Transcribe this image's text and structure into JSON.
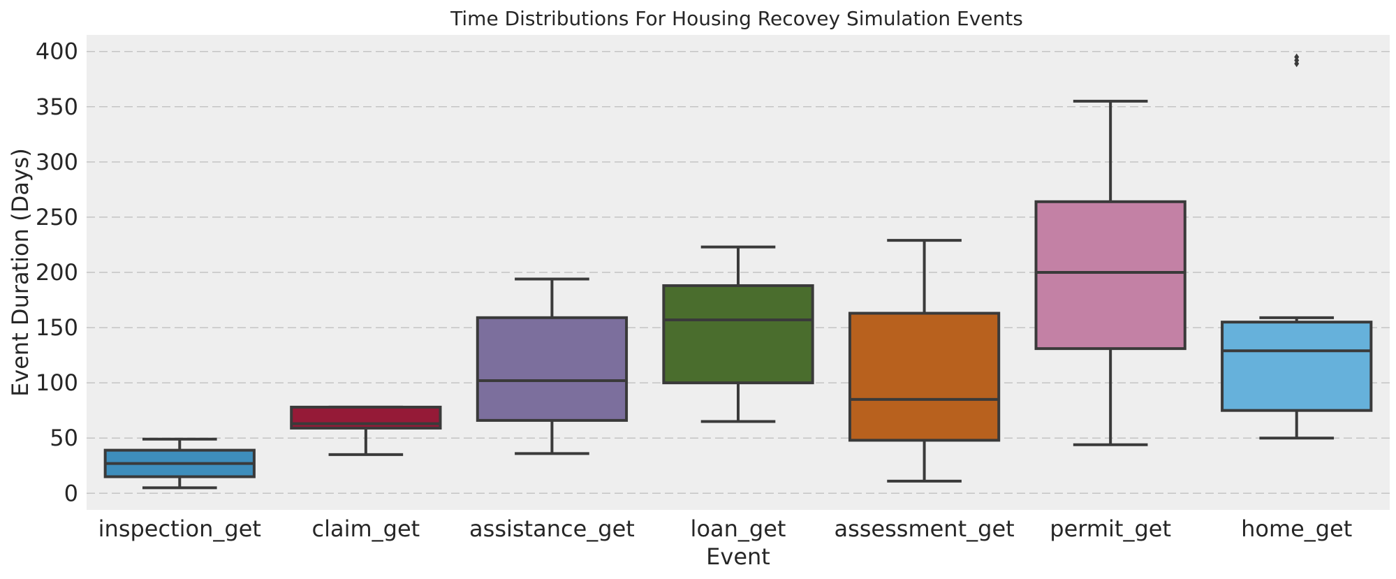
{
  "chart_data": {
    "type": "box",
    "title": "Time Distributions For Housing Recovey Simulation Events",
    "xlabel": "Event",
    "ylabel": "Event Duration (Days)",
    "ylim": [
      -15,
      415
    ],
    "yticks": [
      0,
      50,
      100,
      150,
      200,
      250,
      300,
      350,
      400
    ],
    "grid": true,
    "categories": [
      "inspection_get",
      "claim_get",
      "assistance_get",
      "loan_get",
      "assessment_get",
      "permit_get",
      "home_get"
    ],
    "boxes": [
      {
        "category": "inspection_get",
        "whisker_low": 5,
        "q1": 15,
        "median": 27,
        "q3": 39,
        "whisker_high": 49,
        "outliers": [],
        "color": "#3e8ebc"
      },
      {
        "category": "claim_get",
        "whisker_low": 35,
        "q1": 59,
        "median": 63,
        "q3": 78,
        "whisker_high": 78,
        "outliers": [],
        "color": "#951a37"
      },
      {
        "category": "assistance_get",
        "whisker_low": 36,
        "q1": 66,
        "median": 102,
        "q3": 159,
        "whisker_high": 194,
        "outliers": [],
        "color": "#7c6f9d"
      },
      {
        "category": "loan_get",
        "whisker_low": 65,
        "q1": 100,
        "median": 157,
        "q3": 188,
        "whisker_high": 223,
        "outliers": [],
        "color": "#4a6d2d"
      },
      {
        "category": "assessment_get",
        "whisker_low": 11,
        "q1": 48,
        "median": 85,
        "q3": 163,
        "whisker_high": 229,
        "outliers": [],
        "color": "#b8611e"
      },
      {
        "category": "permit_get",
        "whisker_low": 44,
        "q1": 131,
        "median": 200,
        "q3": 264,
        "whisker_high": 355,
        "outliers": [],
        "color": "#c381a5"
      },
      {
        "category": "home_get",
        "whisker_low": 50,
        "q1": 75,
        "median": 129,
        "q3": 155,
        "whisker_high": 159,
        "outliers": [
          389,
          392,
          395
        ],
        "color": "#66b1db"
      }
    ]
  }
}
